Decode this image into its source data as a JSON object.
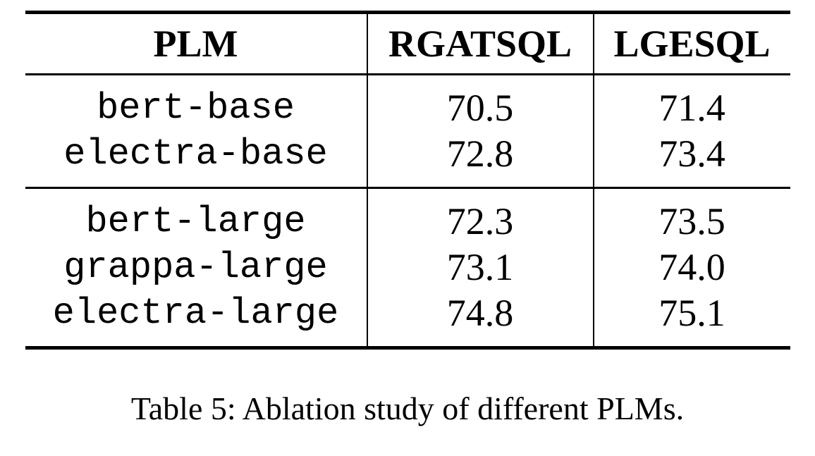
{
  "colors": {
    "background": "#ffffff",
    "text": "#000000",
    "rule": "#000000"
  },
  "table": {
    "columns": [
      "PLM",
      "RGATSQL",
      "LGESQL"
    ],
    "groups": [
      {
        "rows": [
          {
            "plm": "bert-base",
            "rgatsql": "70.5",
            "lgesql": "71.4"
          },
          {
            "plm": "electra-base",
            "rgatsql": "72.8",
            "lgesql": "73.4"
          }
        ]
      },
      {
        "rows": [
          {
            "plm": "bert-large",
            "rgatsql": "72.3",
            "lgesql": "73.5"
          },
          {
            "plm": "grappa-large",
            "rgatsql": "73.1",
            "lgesql": "74.0"
          },
          {
            "plm": "electra-large",
            "rgatsql": "74.8",
            "lgesql": "75.1"
          }
        ]
      }
    ]
  },
  "caption": "Table 5: Ablation study of different PLMs.",
  "chart_data": {
    "type": "table",
    "categories": [
      "bert-base",
      "electra-base",
      "bert-large",
      "grappa-large",
      "electra-large"
    ],
    "series": [
      {
        "name": "RGATSQL",
        "values": [
          70.5,
          72.8,
          72.3,
          73.1,
          74.8
        ]
      },
      {
        "name": "LGESQL",
        "values": [
          71.4,
          73.4,
          73.5,
          74.0,
          75.1
        ]
      }
    ],
    "title": "Table 5: Ablation study of different PLMs."
  }
}
